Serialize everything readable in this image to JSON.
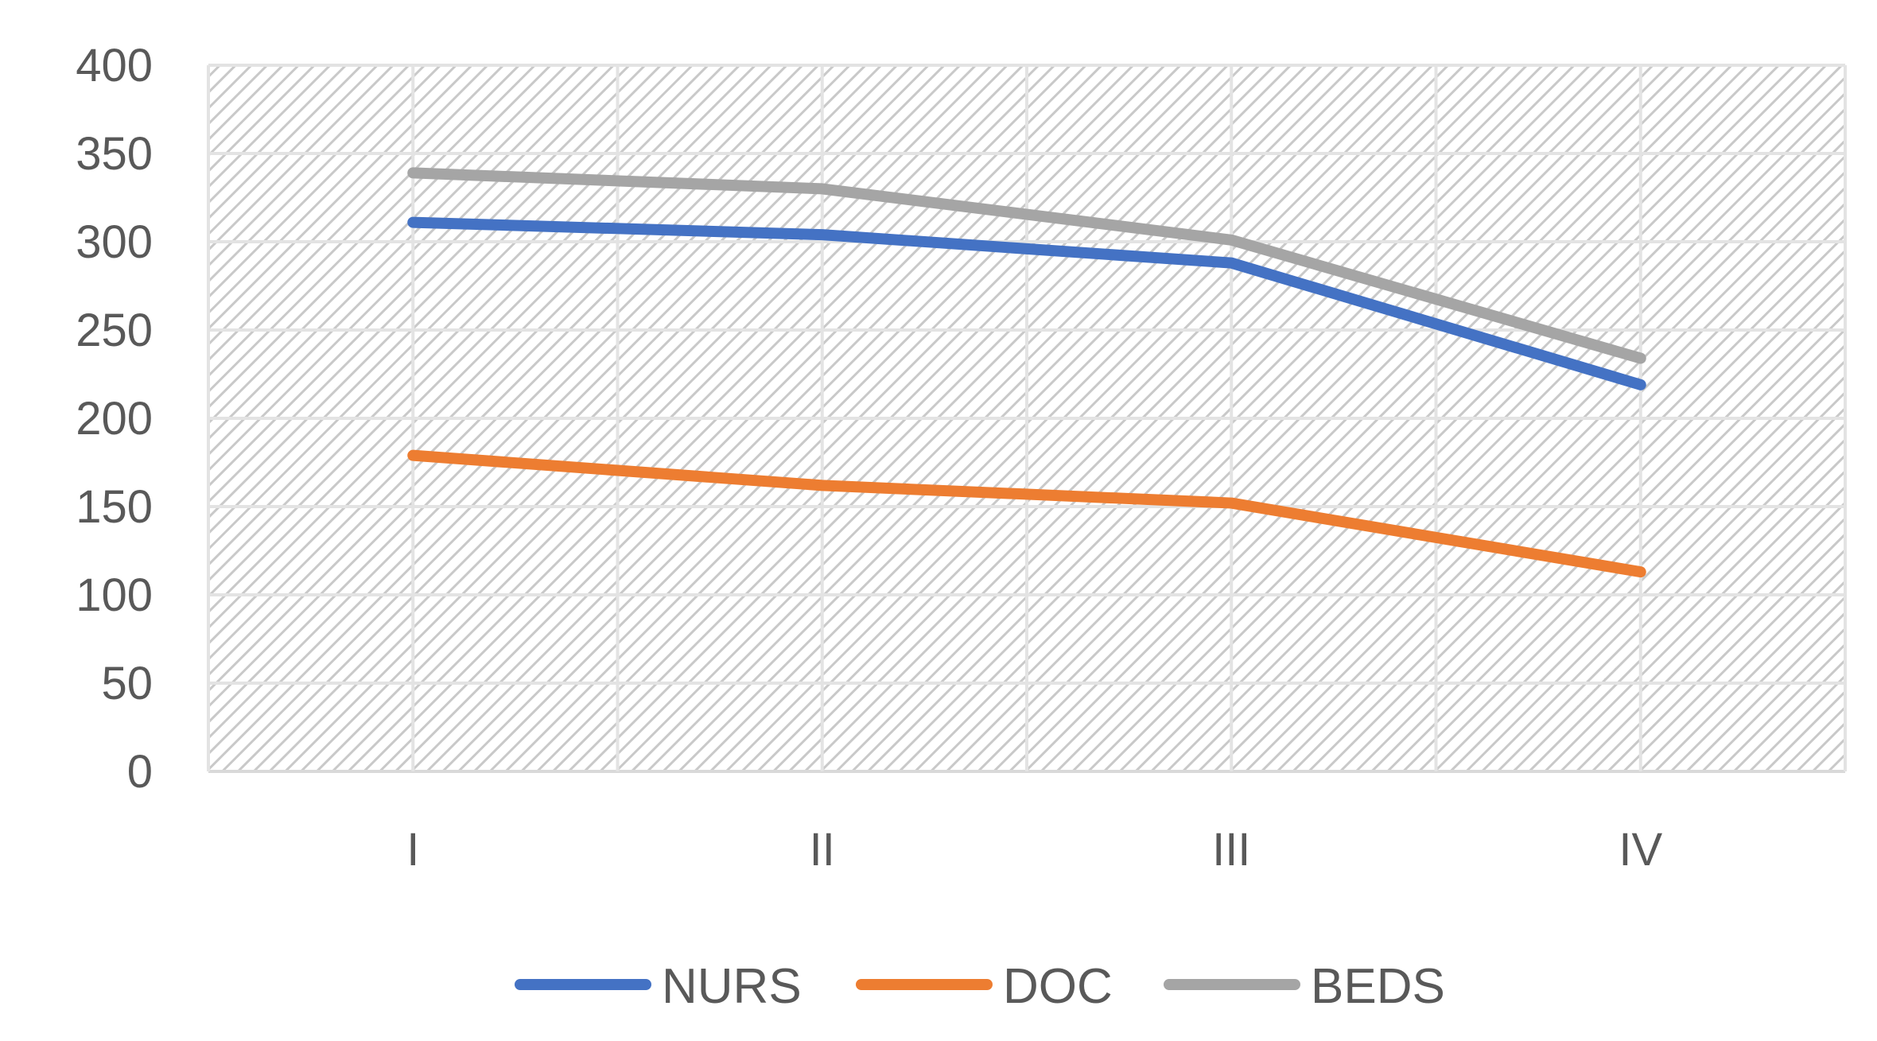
{
  "chart_data": {
    "type": "line",
    "categories": [
      "I",
      "II",
      "III",
      "IV"
    ],
    "series": [
      {
        "name": "NURS",
        "values": [
          311,
          304,
          288,
          219
        ],
        "color": "#4472C4"
      },
      {
        "name": "DOC",
        "values": [
          179,
          162,
          152,
          113
        ],
        "color": "#ED7D31"
      },
      {
        "name": "BEDS",
        "values": [
          339,
          330,
          301,
          234
        ],
        "color": "#A5A5A5"
      }
    ],
    "ylim": [
      0,
      400
    ],
    "yticks": [
      0,
      50,
      100,
      150,
      200,
      250,
      300,
      350,
      400
    ],
    "grid": true,
    "plot_background": "hatched",
    "legend": "bottom"
  }
}
